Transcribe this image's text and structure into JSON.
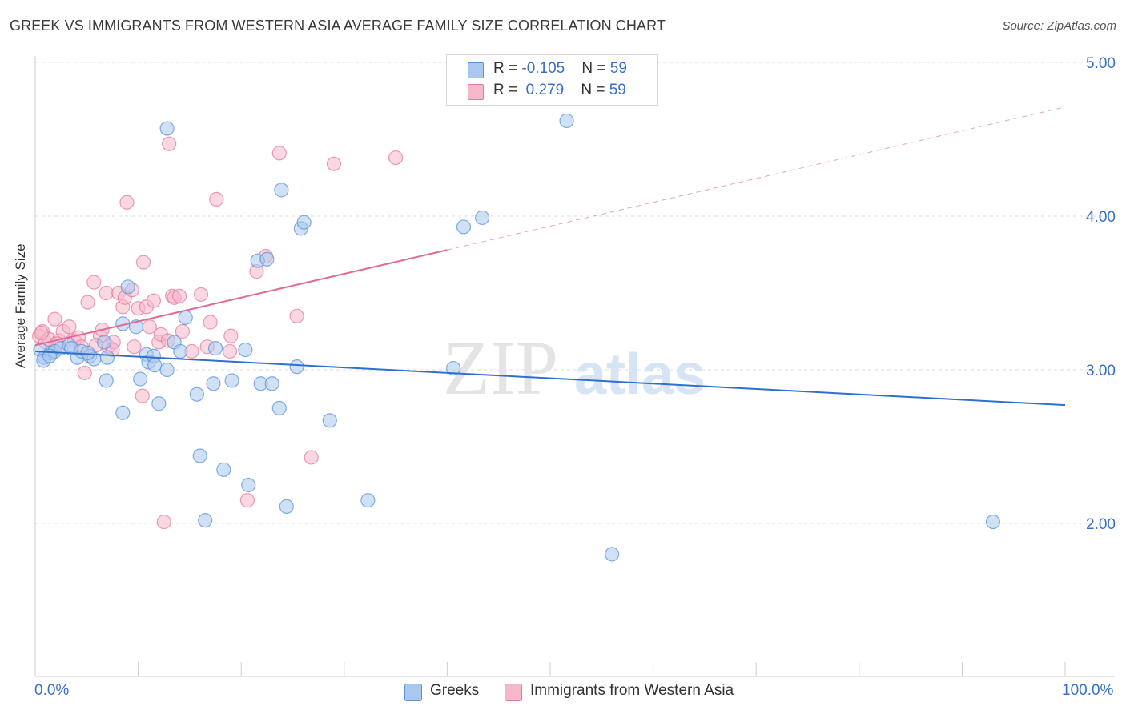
{
  "title": "GREEK VS IMMIGRANTS FROM WESTERN ASIA AVERAGE FAMILY SIZE CORRELATION CHART",
  "source": "Source: ZipAtlas.com",
  "watermark": {
    "zip": "ZIP",
    "atlas": "atlas"
  },
  "legend": {
    "rows": [
      {
        "r_label": "R = ",
        "r_value": "-0.105",
        "n_label": "N = ",
        "n_value": "59",
        "color": "#a9c8ef"
      },
      {
        "r_label": "R = ",
        "r_value": "0.279",
        "n_label": "N = ",
        "n_value": "59",
        "color": "#f5b8cb"
      }
    ]
  },
  "bottom_legend": [
    {
      "label": "Greeks",
      "color": "#a9c8ef"
    },
    {
      "label": "Immigrants from Western Asia",
      "color": "#f5b8cb"
    }
  ],
  "chart_data": {
    "type": "scatter",
    "title": "GREEK VS IMMIGRANTS FROM WESTERN ASIA AVERAGE FAMILY SIZE CORRELATION CHART",
    "xlabel": "",
    "ylabel": "Average Family Size",
    "xlim": [
      0,
      100
    ],
    "ylim": [
      1.0,
      5.1
    ],
    "x_tick_labels": [
      "0.0%",
      "100.0%"
    ],
    "y_ticks": [
      2.0,
      3.0,
      4.0,
      5.0
    ],
    "y_tick_labels": [
      "2.00",
      "3.00",
      "4.00",
      "5.00"
    ],
    "grid": true,
    "series": [
      {
        "name": "Greeks",
        "color": "#5a93db",
        "fill": "#a9c8ef",
        "trend": {
          "x": [
            0,
            100
          ],
          "y": [
            3.12,
            2.77
          ],
          "dashed_from": null
        },
        "points": [
          [
            0.5,
            3.13
          ],
          [
            0.9,
            3.08
          ],
          [
            1.5,
            3.11
          ],
          [
            1.9,
            3.12
          ],
          [
            2.5,
            3.14
          ],
          [
            3.3,
            3.16
          ],
          [
            4.1,
            3.08
          ],
          [
            4.5,
            3.12
          ],
          [
            5.3,
            3.09
          ],
          [
            5.7,
            3.07
          ],
          [
            6.7,
            3.18
          ],
          [
            7.0,
            3.08
          ],
          [
            6.9,
            2.93
          ],
          [
            8.5,
            3.3
          ],
          [
            8.5,
            2.72
          ],
          [
            9.0,
            3.54
          ],
          [
            9.8,
            3.28
          ],
          [
            10.2,
            2.94
          ],
          [
            10.8,
            3.1
          ],
          [
            11.0,
            3.05
          ],
          [
            11.5,
            3.09
          ],
          [
            11.6,
            3.03
          ],
          [
            12.0,
            2.78
          ],
          [
            12.8,
            3.0
          ],
          [
            13.5,
            3.18
          ],
          [
            14.1,
            3.12
          ],
          [
            14.6,
            3.34
          ],
          [
            12.8,
            4.57
          ],
          [
            15.7,
            2.84
          ],
          [
            16.0,
            2.44
          ],
          [
            16.5,
            2.02
          ],
          [
            17.3,
            2.91
          ],
          [
            17.5,
            3.14
          ],
          [
            18.3,
            2.35
          ],
          [
            19.1,
            2.93
          ],
          [
            20.4,
            3.13
          ],
          [
            20.7,
            2.25
          ],
          [
            21.6,
            3.71
          ],
          [
            21.9,
            2.91
          ],
          [
            22.5,
            3.72
          ],
          [
            23.0,
            2.91
          ],
          [
            23.7,
            2.75
          ],
          [
            23.9,
            4.17
          ],
          [
            24.4,
            2.11
          ],
          [
            25.4,
            3.02
          ],
          [
            25.8,
            3.92
          ],
          [
            26.1,
            3.96
          ],
          [
            28.6,
            2.67
          ],
          [
            32.3,
            2.15
          ],
          [
            40.6,
            3.01
          ],
          [
            41.6,
            3.93
          ],
          [
            43.4,
            3.99
          ],
          [
            51.6,
            4.62
          ],
          [
            56.0,
            1.8
          ],
          [
            93.0,
            2.01
          ],
          [
            0.8,
            3.06
          ],
          [
            1.4,
            3.09
          ],
          [
            3.5,
            3.14
          ],
          [
            5.1,
            3.11
          ]
        ]
      },
      {
        "name": "Immigrants from Western Asia",
        "color": "#e8799e",
        "fill": "#f5b8cb",
        "trend": {
          "x": [
            0,
            100
          ],
          "y": [
            3.16,
            4.71
          ],
          "dashed_from": 40.0
        },
        "points": [
          [
            0.4,
            3.22
          ],
          [
            0.7,
            3.25
          ],
          [
            1.0,
            3.18
          ],
          [
            1.3,
            3.2
          ],
          [
            1.9,
            3.33
          ],
          [
            2.3,
            3.19
          ],
          [
            2.7,
            3.25
          ],
          [
            3.3,
            3.28
          ],
          [
            3.8,
            3.19
          ],
          [
            4.2,
            3.21
          ],
          [
            4.8,
            2.98
          ],
          [
            5.1,
            3.44
          ],
          [
            5.7,
            3.57
          ],
          [
            6.3,
            3.22
          ],
          [
            6.5,
            3.26
          ],
          [
            6.9,
            3.5
          ],
          [
            7.1,
            3.15
          ],
          [
            7.6,
            3.18
          ],
          [
            8.1,
            3.5
          ],
          [
            8.5,
            3.41
          ],
          [
            8.7,
            3.47
          ],
          [
            8.9,
            4.09
          ],
          [
            9.4,
            3.52
          ],
          [
            9.6,
            3.15
          ],
          [
            10.0,
            3.4
          ],
          [
            10.4,
            2.83
          ],
          [
            10.5,
            3.7
          ],
          [
            10.8,
            3.41
          ],
          [
            11.1,
            3.28
          ],
          [
            11.5,
            3.45
          ],
          [
            12.0,
            3.18
          ],
          [
            12.2,
            3.23
          ],
          [
            12.5,
            2.01
          ],
          [
            13.0,
            4.47
          ],
          [
            13.3,
            3.48
          ],
          [
            13.5,
            3.47
          ],
          [
            14.0,
            3.48
          ],
          [
            14.3,
            3.25
          ],
          [
            15.2,
            3.12
          ],
          [
            16.1,
            3.49
          ],
          [
            16.7,
            3.15
          ],
          [
            17.0,
            3.31
          ],
          [
            17.6,
            4.11
          ],
          [
            18.9,
            3.12
          ],
          [
            19.0,
            3.22
          ],
          [
            20.6,
            2.15
          ],
          [
            21.5,
            3.64
          ],
          [
            22.4,
            3.74
          ],
          [
            23.7,
            4.41
          ],
          [
            25.4,
            3.35
          ],
          [
            26.8,
            2.43
          ],
          [
            29.0,
            4.34
          ],
          [
            35.0,
            4.38
          ],
          [
            0.6,
            3.24
          ],
          [
            2.1,
            3.17
          ],
          [
            4.5,
            3.15
          ],
          [
            5.9,
            3.16
          ],
          [
            12.9,
            3.19
          ],
          [
            7.5,
            3.13
          ]
        ]
      }
    ]
  }
}
